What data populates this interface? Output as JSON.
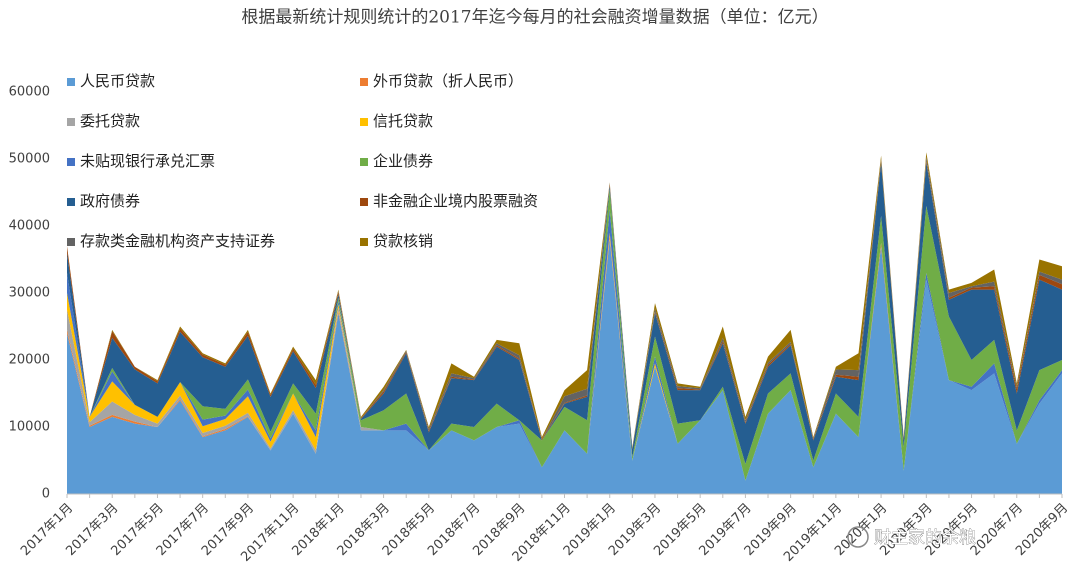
{
  "chart_data": {
    "type": "stacked_area",
    "title": "根据最新统计规则统计的2017年迄今每月的社会融资增量数据（单位：亿元）",
    "watermark": "财主家的余粮",
    "categories": [
      "2017年1月",
      null,
      "2017年3月",
      null,
      "2017年5月",
      null,
      "2017年7月",
      null,
      "2017年9月",
      null,
      "2017年11月",
      null,
      "2018年1月",
      null,
      "2018年3月",
      null,
      "2018年5月",
      null,
      "2018年7月",
      null,
      "2018年9月",
      null,
      "2018年11月",
      null,
      "2019年1月",
      null,
      "2019年3月",
      null,
      "2019年5月",
      null,
      "2019年7月",
      null,
      "2019年9月",
      null,
      "2019年11月",
      null,
      "2020年1月",
      null,
      "2020年3月",
      null,
      "2020年5月",
      null,
      "2020年7月",
      null,
      "2020年9月"
    ],
    "ylim": [
      0,
      60000
    ],
    "yticks": [
      0,
      10000,
      20000,
      30000,
      40000,
      50000,
      60000
    ],
    "series": [
      {
        "name": "人民币贷款",
        "color": "#5b9bd5",
        "values": [
          24000,
          10000,
          11500,
          10500,
          10000,
          14000,
          8500,
          9500,
          11500,
          6500,
          12000,
          6000,
          27000,
          9500,
          9500,
          9500,
          6500,
          9500,
          8000,
          10000,
          10500,
          4000,
          9500,
          6000,
          38000,
          5000,
          19000,
          7500,
          11000,
          15500,
          2000,
          12000,
          15500,
          4000,
          12000,
          8500,
          37000,
          3500,
          32000,
          17000,
          15500,
          18000,
          7500,
          13500,
          18000
        ]
      },
      {
        "name": "外币贷款（折人民币）",
        "color": "#ed7d31",
        "values": [
          500,
          200,
          300,
          300,
          0,
          200,
          100,
          200,
          100,
          0,
          0,
          0,
          300,
          0,
          0,
          0,
          0,
          0,
          0,
          0,
          0,
          0,
          0,
          0,
          500,
          0,
          0,
          0,
          0,
          0,
          0,
          0,
          0,
          0,
          0,
          0,
          500,
          0,
          0,
          0,
          0,
          0,
          0,
          0,
          0
        ]
      },
      {
        "name": "委托贷款",
        "color": "#a5a5a5",
        "values": [
          3000,
          500,
          2000,
          1000,
          500,
          500,
          500,
          500,
          500,
          300,
          500,
          500,
          500,
          500,
          0,
          0,
          0,
          0,
          0,
          0,
          0,
          0,
          0,
          0,
          0,
          0,
          0,
          0,
          0,
          0,
          0,
          0,
          0,
          0,
          0,
          0,
          0,
          0,
          0,
          0,
          0,
          0,
          0,
          0,
          0
        ]
      },
      {
        "name": "信托贷款",
        "color": "#ffc000",
        "values": [
          2500,
          800,
          3000,
          1500,
          1000,
          2000,
          1000,
          1000,
          2500,
          1000,
          2500,
          2000,
          500,
          0,
          0,
          0,
          0,
          0,
          0,
          0,
          0,
          0,
          0,
          0,
          500,
          0,
          500,
          0,
          0,
          0,
          0,
          0,
          0,
          0,
          0,
          0,
          0,
          0,
          0,
          0,
          0,
          0,
          0,
          0,
          0
        ]
      },
      {
        "name": "未贴现银行承兑汇票",
        "color": "#4472c4",
        "values": [
          3000,
          0,
          1500,
          0,
          0,
          0,
          1000,
          500,
          1000,
          500,
          0,
          1000,
          500,
          0,
          0,
          1000,
          0,
          0,
          0,
          0,
          500,
          0,
          0,
          0,
          3500,
          0,
          1000,
          0,
          0,
          0,
          0,
          0,
          0,
          0,
          0,
          0,
          0,
          0,
          1000,
          0,
          500,
          1500,
          0,
          500,
          500
        ]
      },
      {
        "name": "企业债券",
        "color": "#70ad47",
        "values": [
          0,
          0,
          500,
          0,
          0,
          0,
          2000,
          1000,
          1500,
          1000,
          1500,
          2500,
          500,
          1000,
          3000,
          4500,
          0,
          1000,
          2000,
          3500,
          0,
          4000,
          3500,
          5000,
          3000,
          500,
          3000,
          3000,
          0,
          500,
          2500,
          3000,
          2500,
          1000,
          3000,
          3000,
          4000,
          3500,
          10000,
          9500,
          4000,
          3500,
          2000,
          4500,
          1500
        ]
      },
      {
        "name": "政府债券",
        "color": "#255e91",
        "values": [
          3000,
          0,
          4500,
          5300,
          5000,
          7500,
          7300,
          6300,
          6500,
          5200,
          4800,
          3800,
          500,
          200,
          2500,
          6000,
          2700,
          6800,
          7000,
          8500,
          9000,
          0,
          500,
          3500,
          500,
          1200,
          3500,
          5000,
          4500,
          6500,
          6000,
          4000,
          4200,
          3000,
          2500,
          5500,
          8000,
          1000,
          6500,
          2500,
          10500,
          7500,
          5500,
          13500,
          10500
        ]
      },
      {
        "name": "非金融企业境内股票融资",
        "color": "#9e480e",
        "values": [
          1000,
          0,
          1000,
          400,
          300,
          500,
          400,
          300,
          600,
          300,
          400,
          500,
          400,
          100,
          300,
          200,
          200,
          200,
          100,
          200,
          200,
          200,
          100,
          200,
          300,
          100,
          200,
          300,
          100,
          300,
          200,
          300,
          200,
          200,
          300,
          500,
          300,
          300,
          300,
          300,
          300,
          500,
          700,
          700,
          800
        ]
      },
      {
        "name": "存款类金融机构资产支持证券",
        "color": "#636363",
        "values": [
          0,
          0,
          0,
          0,
          0,
          0,
          0,
          0,
          0,
          0,
          0,
          0,
          100,
          0,
          200,
          200,
          300,
          500,
          200,
          300,
          500,
          0,
          1000,
          1000,
          100,
          100,
          500,
          300,
          200,
          500,
          300,
          300,
          300,
          100,
          800,
          1000,
          200,
          100,
          500,
          700,
          200,
          700,
          300,
          500,
          700
        ]
      },
      {
        "name": "贷款核销",
        "color": "#997300",
        "values": [
          0,
          0,
          200,
          0,
          200,
          300,
          200,
          200,
          300,
          200,
          300,
          700,
          200,
          200,
          500,
          100,
          300,
          1500,
          200,
          500,
          1800,
          300,
          900,
          2800,
          100,
          100,
          800,
          400,
          200,
          1700,
          500,
          900,
          1800,
          200,
          400,
          2500,
          500,
          100,
          700,
          500,
          500,
          1800,
          500,
          1800,
          2000
        ]
      }
    ]
  }
}
